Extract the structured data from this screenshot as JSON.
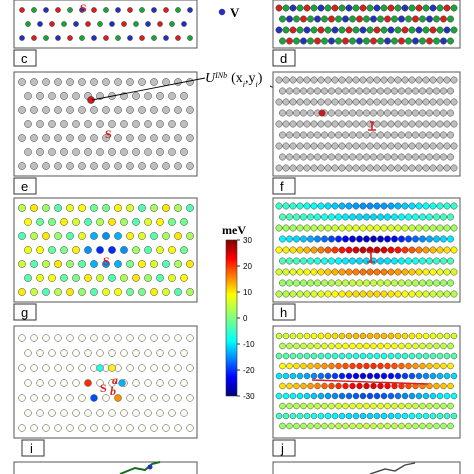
{
  "panels": {
    "c": {
      "label": "c"
    },
    "d": {
      "label": "d"
    },
    "e": {
      "label": "e"
    },
    "f": {
      "label": "f"
    },
    "g": {
      "label": "g"
    },
    "h": {
      "label": "h"
    },
    "i": {
      "label": "i"
    },
    "j": {
      "label": "j"
    }
  },
  "markers": {
    "site_s": "S",
    "site_a": "a",
    "site_b": "b",
    "legend_v": "V"
  },
  "annotation": {
    "main": "U",
    "superscript": "INb",
    "coords": "(x",
    "sub_i1": "i",
    "comma": ",y",
    "sub_i2": "i",
    "close": ")"
  },
  "colorbar": {
    "title": "meV",
    "min": -30,
    "max": 30,
    "ticks": [
      30,
      20,
      10,
      0,
      -10,
      -20,
      -30
    ],
    "tick_labels": [
      "30",
      "20",
      "10",
      "0",
      "-10",
      "-20",
      "-30"
    ],
    "colormap": "jet"
  },
  "colors": {
    "atom_red": "#d42020",
    "atom_green": "#1aa33a",
    "atom_blue": "#2332b8",
    "atom_gray": "#bfbfbf",
    "atom_highlight": "#d01818"
  }
}
